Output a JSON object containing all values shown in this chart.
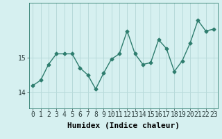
{
  "x": [
    0,
    1,
    2,
    3,
    4,
    5,
    6,
    7,
    8,
    9,
    10,
    11,
    12,
    13,
    14,
    15,
    16,
    17,
    18,
    19,
    20,
    21,
    22,
    23
  ],
  "y": [
    14.2,
    14.35,
    14.8,
    15.1,
    15.1,
    15.1,
    14.7,
    14.5,
    14.1,
    14.55,
    14.95,
    15.1,
    15.75,
    15.1,
    14.8,
    14.85,
    15.5,
    15.25,
    14.6,
    14.9,
    15.4,
    16.05,
    15.75,
    15.8
  ],
  "line_color": "#2e7d6e",
  "marker": "D",
  "markersize": 2.5,
  "linewidth": 1.0,
  "bg_color": "#d6f0f0",
  "grid_color": "#b8dada",
  "xlabel": "Humidex (Indice chaleur)",
  "yticks": [
    14,
    15
  ],
  "xlim": [
    -0.5,
    23.5
  ],
  "ylim": [
    13.55,
    16.55
  ],
  "xlabel_fontsize": 8,
  "tick_fontsize": 7,
  "font_family": "monospace"
}
